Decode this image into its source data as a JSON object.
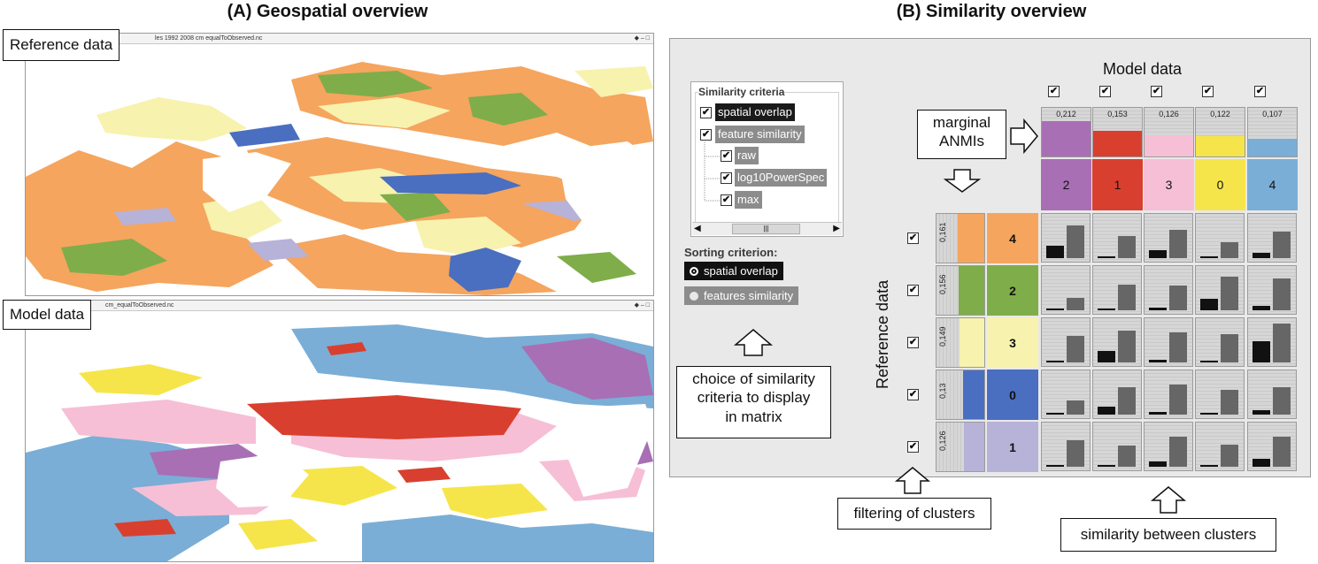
{
  "headings": {
    "a": "(A) Geospatial overview",
    "b": "(B) Similarity overview"
  },
  "map_windows": {
    "top_title": "les 1992 2008 cm equalToObserved.nc",
    "bottom_title": "cm_equalToObserved.nc",
    "controls": "◆ – □"
  },
  "labels": {
    "reference_data": "Reference data",
    "model_data": "Model data",
    "model_data_axis": "Model data",
    "reference_data_axis": "Reference data"
  },
  "criteria": {
    "legend": "Similarity criteria",
    "items": [
      {
        "label": "spatial overlap",
        "checked": "✔",
        "style": "dark"
      },
      {
        "label": "feature similarity",
        "checked": "✔",
        "style": "mid"
      },
      {
        "label": "raw",
        "checked": "✔",
        "style": "mid"
      },
      {
        "label": "log10PowerSpec",
        "checked": "✔",
        "style": "mid"
      },
      {
        "label": "max",
        "checked": "✔",
        "style": "mid"
      }
    ],
    "scroll_left": "◀",
    "scroll_right": "▶",
    "scroll_thumb": "|||"
  },
  "sorting": {
    "label": "Sorting criterion:",
    "options": [
      {
        "label": "spatial overlap",
        "selected": true
      },
      {
        "label": "features similarity",
        "selected": false
      }
    ]
  },
  "callouts": {
    "marginal_line1": "marginal",
    "marginal_line2": "ANMIs",
    "choice_line1": "choice of similarity",
    "choice_line2": "criteria to display",
    "choice_line3": "in matrix",
    "filtering": "filtering of clusters",
    "similarity": "similarity between clusters"
  },
  "checkmark": "✔",
  "model_clusters": [
    {
      "label": "2",
      "color": "#a86fb5",
      "anmi": "0,212",
      "anmi_value": 0.212
    },
    {
      "label": "1",
      "color": "#d93f2e",
      "anmi": "0,153",
      "anmi_value": 0.153
    },
    {
      "label": "3",
      "color": "#f6bfd6",
      "anmi": "0,126",
      "anmi_value": 0.126
    },
    {
      "label": "0",
      "color": "#f6e54a",
      "anmi": "0,122",
      "anmi_value": 0.122
    },
    {
      "label": "4",
      "color": "#7aaed6",
      "anmi": "0,107",
      "anmi_value": 0.107
    }
  ],
  "reference_clusters": [
    {
      "label": "4",
      "color": "#f5a55e",
      "anmi": "0,161",
      "anmi_value": 0.161
    },
    {
      "label": "2",
      "color": "#7fad4a",
      "anmi": "0,156",
      "anmi_value": 0.156
    },
    {
      "label": "3",
      "color": "#f7f2ae",
      "anmi": "0,149",
      "anmi_value": 0.149
    },
    {
      "label": "0",
      "color": "#4a6ec0",
      "anmi": "0,13",
      "anmi_value": 0.13
    },
    {
      "label": "1",
      "color": "#b7b2d8",
      "anmi": "0,126",
      "anmi_value": 0.126
    }
  ],
  "similarity_matrix": {
    "spatial_overlap": [
      [
        0.3,
        0.03,
        0.18,
        0.04,
        0.12
      ],
      [
        0.04,
        0.02,
        0.07,
        0.28,
        0.1
      ],
      [
        0.04,
        0.28,
        0.07,
        0.03,
        0.5
      ],
      [
        0.05,
        0.18,
        0.07,
        0.02,
        0.1
      ],
      [
        0.04,
        0.03,
        0.12,
        0.04,
        0.18
      ]
    ],
    "feature_similarity": [
      [
        0.78,
        0.52,
        0.66,
        0.38,
        0.62
      ],
      [
        0.3,
        0.6,
        0.58,
        0.8,
        0.74
      ],
      [
        0.62,
        0.74,
        0.7,
        0.66,
        0.92
      ],
      [
        0.34,
        0.64,
        0.7,
        0.58,
        0.65
      ],
      [
        0.62,
        0.5,
        0.7,
        0.52,
        0.7
      ]
    ]
  },
  "colors": {
    "spatial_bar": "#111111",
    "feature_bar": "#666666"
  }
}
